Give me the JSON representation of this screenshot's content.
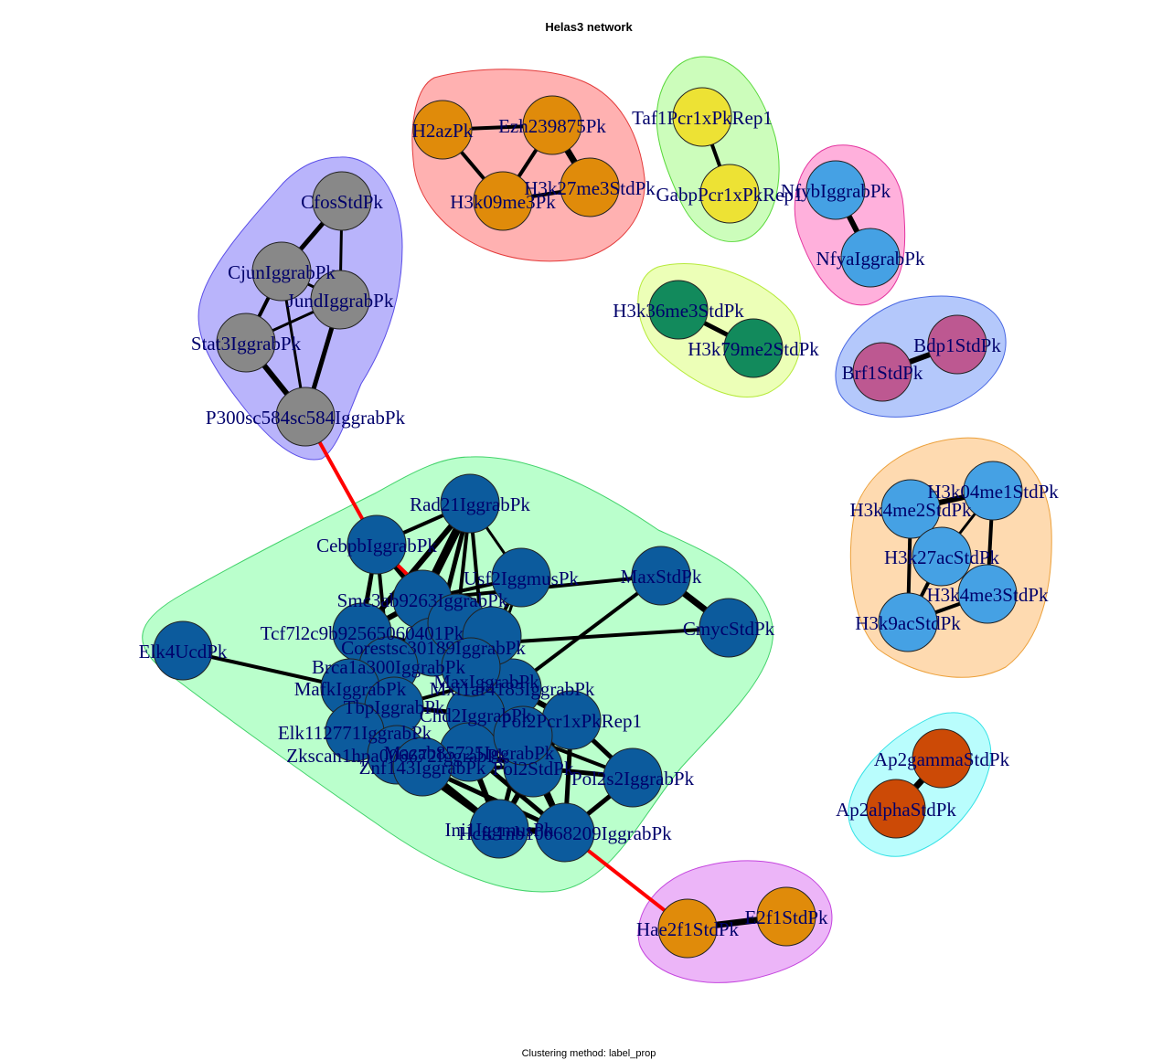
{
  "title": "Helas3 network",
  "caption": "Clustering method: label_prop",
  "colors": {
    "edge": "#000000",
    "bridge_edge": "#ff0000",
    "node_stroke": "#222222",
    "label": "#00006b"
  },
  "clusters": [
    {
      "id": "c-fos",
      "fill": "#b9b4fb",
      "stroke": "#5b4ee8"
    },
    {
      "id": "c-ezh",
      "fill": "#ffb1b1",
      "stroke": "#e33b3b"
    },
    {
      "id": "c-taf",
      "fill": "#ccfdbb",
      "stroke": "#58d83a"
    },
    {
      "id": "c-nfy",
      "fill": "#ffb0dc",
      "stroke": "#e4349f"
    },
    {
      "id": "c-h3k36",
      "fill": "#ecffb7",
      "stroke": "#b6ea3a"
    },
    {
      "id": "c-bdp",
      "fill": "#b4c8fb",
      "stroke": "#4766e2"
    },
    {
      "id": "c-main",
      "fill": "#baffcc",
      "stroke": "#43d36b"
    },
    {
      "id": "c-h3k4",
      "fill": "#fedab0",
      "stroke": "#eca03a"
    },
    {
      "id": "c-ap2",
      "fill": "#b9fdfd",
      "stroke": "#35e2e6"
    },
    {
      "id": "c-e2f1",
      "fill": "#ecb5f8",
      "stroke": "#c445de"
    }
  ],
  "nodes": [
    {
      "id": "CfosStdPk",
      "label": "CfosStdPk",
      "color": "#888888"
    },
    {
      "id": "CjunIggrabPk",
      "label": "CjunIggrabPk",
      "color": "#888888"
    },
    {
      "id": "JundIggrabPk",
      "label": "JundIggrabPk",
      "color": "#888888"
    },
    {
      "id": "Stat3IggrabPk",
      "label": "Stat3IggrabPk",
      "color": "#888888"
    },
    {
      "id": "P300",
      "label": "P300sc584sc584IggrabPk",
      "color": "#888888"
    },
    {
      "id": "H2azPk",
      "label": "H2azPk",
      "color": "#e08b0a"
    },
    {
      "id": "Ezh239875Pk",
      "label": "Ezh239875Pk",
      "color": "#e08b0a"
    },
    {
      "id": "H3k09me3Pk",
      "label": "H3k09me3Pk",
      "color": "#e08b0a"
    },
    {
      "id": "H3k27me3StdPk",
      "label": "H3k27me3StdPk",
      "color": "#e08b0a"
    },
    {
      "id": "Taf1Pcr1xPkRep1",
      "label": "Taf1Pcr1xPkRep1",
      "color": "#ede234"
    },
    {
      "id": "GabpPcr1xPkRep1",
      "label": "GabpPcr1xPkRep1",
      "color": "#ede234"
    },
    {
      "id": "NfybIggrabPk",
      "label": "NfybIggrabPk",
      "color": "#45a1e4"
    },
    {
      "id": "NfyaIggrabPk",
      "label": "NfyaIggrabPk",
      "color": "#45a1e4"
    },
    {
      "id": "H3k36me3StdPk",
      "label": "H3k36me3StdPk",
      "color": "#128a5c"
    },
    {
      "id": "H3k79me2StdPk",
      "label": "H3k79me2StdPk",
      "color": "#128a5c"
    },
    {
      "id": "Bdp1StdPk",
      "label": "Bdp1StdPk",
      "color": "#bd5891"
    },
    {
      "id": "Brf1StdPk",
      "label": "Brf1StdPk",
      "color": "#bd5891"
    },
    {
      "id": "H3k04me1StdPk",
      "label": "H3k04me1StdPk",
      "color": "#45a1e4"
    },
    {
      "id": "H3k4me2StdPk",
      "label": "H3k4me2StdPk",
      "color": "#45a1e4"
    },
    {
      "id": "H3k27acStdPk",
      "label": "H3k27acStdPk",
      "color": "#45a1e4"
    },
    {
      "id": "H3k4me3StdPk",
      "label": "H3k4me3StdPk",
      "color": "#45a1e4"
    },
    {
      "id": "H3k9acStdPk",
      "label": "H3k9acStdPk",
      "color": "#45a1e4"
    },
    {
      "id": "Ap2gammaStdPk",
      "label": "Ap2gammaStdPk",
      "color": "#cc4a06"
    },
    {
      "id": "Ap2alphaStdPk",
      "label": "Ap2alphaStdPk",
      "color": "#cc4a06"
    },
    {
      "id": "Hae2f1StdPk",
      "label": "Hae2f1StdPk",
      "color": "#e08b0a"
    },
    {
      "id": "E2f1StdPk",
      "label": "E2f1StdPk",
      "color": "#e08b0a"
    },
    {
      "id": "Rad21IggrabPk",
      "label": "Rad21IggrabPk",
      "color": "#0c5b9d"
    },
    {
      "id": "CebpbIggrabPk",
      "label": "CebpbIggrabPk",
      "color": "#0c5b9d"
    },
    {
      "id": "Usf2IggmusPk",
      "label": "Usf2IggmusPk",
      "color": "#0c5b9d"
    },
    {
      "id": "MaxStdPk",
      "label": "MaxStdPk",
      "color": "#0c5b9d"
    },
    {
      "id": "CmycStdPk",
      "label": "CmycStdPk",
      "color": "#0c5b9d"
    },
    {
      "id": "Smc3ab9263IggrabPk",
      "label": "Smc3ab9263IggrabPk",
      "color": "#0c5b9d"
    },
    {
      "id": "Tcf7l2c9b92565060401Pk",
      "label": "Tcf7l2c9b92565060401Pk",
      "color": "#0c5b9d"
    },
    {
      "id": "Corestsc30189IggrabPk",
      "label": "Corestsc30189IggrabPk",
      "color": "#0c5b9d"
    },
    {
      "id": "Elk4UcdPk",
      "label": "Elk4UcdPk",
      "color": "#0c5b9d"
    },
    {
      "id": "Brca1a300IggrabPk",
      "label": "Brca1a300IggrabPk",
      "color": "#0c5b9d"
    },
    {
      "id": "MafkIggrabPk",
      "label": "MafkIggrabPk",
      "color": "#0c5b9d"
    },
    {
      "id": "MaxIggrabPk",
      "label": "MaxIggrabPk",
      "color": "#0c5b9d"
    },
    {
      "id": "Mxi1af4185IggrabPk",
      "label": "Mxi1af4185IggrabPk",
      "color": "#0c5b9d"
    },
    {
      "id": "TbpIggrabPk",
      "label": "TbpIggrabPk",
      "color": "#0c5b9d"
    },
    {
      "id": "Chd2IggrabPk",
      "label": "Chd2IggrabPk",
      "color": "#0c5b9d"
    },
    {
      "id": "Elk112771IggrabPk",
      "label": "Elk112771IggrabPk",
      "color": "#0c5b9d"
    },
    {
      "id": "Pol2Pcr1xPkRep1",
      "label": "Pol2Pcr1xPkRep1",
      "color": "#0c5b9d"
    },
    {
      "id": "Zkscan1hpa006672IggrabPk",
      "label": "Zkscan1hpa006672IggrabPk",
      "color": "#0c5b9d"
    },
    {
      "id": "Mazab85725IggrabPk",
      "label": "Mazab85725IggrabPk",
      "color": "#0c5b9d"
    },
    {
      "id": "Znf143IggrabPk",
      "label": "Znf143IggrabPk",
      "color": "#0c5b9d"
    },
    {
      "id": "Pol2StdPk",
      "label": "Pol2StdPk",
      "color": "#0c5b9d"
    },
    {
      "id": "Pol2s2IggrabPk",
      "label": "Pol2s2IggrabPk",
      "color": "#0c5b9d"
    },
    {
      "id": "Ini1IggmusPk",
      "label": "Ini1IggmusPk",
      "color": "#0c5b9d"
    },
    {
      "id": "Hcfc1nb10068209IggrabPk",
      "label": "Hcfc1nb10068209IggrabPk",
      "color": "#0c5b9d"
    },
    {
      "id": "Extra1",
      "label": "",
      "color": "#0c5b9d"
    },
    {
      "id": "Extra2",
      "label": "",
      "color": "#0c5b9d"
    },
    {
      "id": "Extra3",
      "label": "",
      "color": "#0c5b9d"
    },
    {
      "id": "Extra4",
      "label": "",
      "color": "#0c5b9d"
    }
  ],
  "edges": [
    {
      "s": "CfosStdPk",
      "t": "CjunIggrabPk",
      "w": 5
    },
    {
      "s": "CfosStdPk",
      "t": "JundIggrabPk",
      "w": 3
    },
    {
      "s": "CjunIggrabPk",
      "t": "JundIggrabPk",
      "w": 3
    },
    {
      "s": "CjunIggrabPk",
      "t": "Stat3IggrabPk",
      "w": 4
    },
    {
      "s": "CjunIggrabPk",
      "t": "P300",
      "w": 3
    },
    {
      "s": "JundIggrabPk",
      "t": "Stat3IggrabPk",
      "w": 3
    },
    {
      "s": "JundIggrabPk",
      "t": "P300",
      "w": 5
    },
    {
      "s": "Stat3IggrabPk",
      "t": "P300",
      "w": 6
    },
    {
      "s": "P300",
      "t": "CebpbIggrabPk",
      "w": 4,
      "bridge": true
    },
    {
      "s": "H2azPk",
      "t": "Ezh239875Pk",
      "w": 4
    },
    {
      "s": "H2azPk",
      "t": "H3k09me3Pk",
      "w": 4
    },
    {
      "s": "Ezh239875Pk",
      "t": "H3k09me3Pk",
      "w": 4
    },
    {
      "s": "Ezh239875Pk",
      "t": "H3k27me3StdPk",
      "w": 7
    },
    {
      "s": "H3k09me3Pk",
      "t": "H3k27me3StdPk",
      "w": 4
    },
    {
      "s": "Taf1Pcr1xPkRep1",
      "t": "GabpPcr1xPkRep1",
      "w": 4
    },
    {
      "s": "NfybIggrabPk",
      "t": "NfyaIggrabPk",
      "w": 6
    },
    {
      "s": "H3k36me3StdPk",
      "t": "H3k79me2StdPk",
      "w": 5
    },
    {
      "s": "Bdp1StdPk",
      "t": "Brf1StdPk",
      "w": 6
    },
    {
      "s": "H3k04me1StdPk",
      "t": "H3k4me2StdPk",
      "w": 6
    },
    {
      "s": "H3k04me1StdPk",
      "t": "H3k27acStdPk",
      "w": 3
    },
    {
      "s": "H3k04me1StdPk",
      "t": "H3k4me3StdPk",
      "w": 4
    },
    {
      "s": "H3k4me2StdPk",
      "t": "H3k27acStdPk",
      "w": 4
    },
    {
      "s": "H3k4me2StdPk",
      "t": "H3k9acStdPk",
      "w": 4
    },
    {
      "s": "H3k27acStdPk",
      "t": "H3k4me3StdPk",
      "w": 5
    },
    {
      "s": "H3k27acStdPk",
      "t": "H3k9acStdPk",
      "w": 4
    },
    {
      "s": "H3k4me3StdPk",
      "t": "H3k9acStdPk",
      "w": 4
    },
    {
      "s": "Ap2gammaStdPk",
      "t": "Ap2alphaStdPk",
      "w": 7
    },
    {
      "s": "Hae2f1StdPk",
      "t": "E2f1StdPk",
      "w": 7
    },
    {
      "s": "Hcfc1nb10068209IggrabPk",
      "t": "Hae2f1StdPk",
      "w": 4,
      "bridge": true
    },
    {
      "s": "Elk4UcdPk",
      "t": "MafkIggrabPk",
      "w": 4
    },
    {
      "s": "MaxStdPk",
      "t": "CmycStdPk",
      "w": 7
    },
    {
      "s": "MaxStdPk",
      "t": "Smc3ab9263IggrabPk",
      "w": 4
    },
    {
      "s": "MaxStdPk",
      "t": "Mxi1af4185IggrabPk",
      "w": 4
    },
    {
      "s": "CmycStdPk",
      "t": "Corestsc30189IggrabPk",
      "w": 4
    },
    {
      "s": "Rad21IggrabPk",
      "t": "CebpbIggrabPk",
      "w": 4
    },
    {
      "s": "Rad21IggrabPk",
      "t": "Smc3ab9263IggrabPk",
      "w": 9
    },
    {
      "s": "Rad21IggrabPk",
      "t": "Tcf7l2c9b92565060401Pk",
      "w": 6
    },
    {
      "s": "Rad21IggrabPk",
      "t": "Corestsc30189IggrabPk",
      "w": 5
    },
    {
      "s": "Rad21IggrabPk",
      "t": "Extra1",
      "w": 4
    },
    {
      "s": "Rad21IggrabPk",
      "t": "MaxIggrabPk",
      "w": 4
    },
    {
      "s": "Rad21IggrabPk",
      "t": "Usf2IggmusPk",
      "w": 3
    },
    {
      "s": "CebpbIggrabPk",
      "t": "Smc3ab9263IggrabPk",
      "w": 5
    },
    {
      "s": "CebpbIggrabPk",
      "t": "Tcf7l2c9b92565060401Pk",
      "w": 4
    },
    {
      "s": "CebpbIggrabPk",
      "t": "MafkIggrabPk",
      "w": 4
    },
    {
      "s": "CebpbIggrabPk",
      "t": "Brca1a300IggrabPk",
      "w": 4
    },
    {
      "s": "CebpbIggrabPk",
      "t": "Extra1",
      "w": 4,
      "bridge": true
    },
    {
      "s": "Usf2IggmusPk",
      "t": "Smc3ab9263IggrabPk",
      "w": 4
    },
    {
      "s": "Usf2IggmusPk",
      "t": "Extra2",
      "w": 4
    },
    {
      "s": "Usf2IggmusPk",
      "t": "MaxIggrabPk",
      "w": 3
    },
    {
      "s": "Smc3ab9263IggrabPk",
      "t": "Tcf7l2c9b92565060401Pk",
      "w": 6
    },
    {
      "s": "Smc3ab9263IggrabPk",
      "t": "Corestsc30189IggrabPk",
      "w": 5
    },
    {
      "s": "Smc3ab9263IggrabPk",
      "t": "Extra1",
      "w": 6
    },
    {
      "s": "Smc3ab9263IggrabPk",
      "t": "Extra2",
      "w": 4
    },
    {
      "s": "Tcf7l2c9b92565060401Pk",
      "t": "Corestsc30189IggrabPk",
      "w": 6
    },
    {
      "s": "Tcf7l2c9b92565060401Pk",
      "t": "MafkIggrabPk",
      "w": 5
    },
    {
      "s": "Tcf7l2c9b92565060401Pk",
      "t": "Brca1a300IggrabPk",
      "w": 5
    },
    {
      "s": "Corestsc30189IggrabPk",
      "t": "Brca1a300IggrabPk",
      "w": 5
    },
    {
      "s": "Corestsc30189IggrabPk",
      "t": "MaxIggrabPk",
      "w": 5
    },
    {
      "s": "Corestsc30189IggrabPk",
      "t": "Extra3",
      "w": 4
    },
    {
      "s": "Brca1a300IggrabPk",
      "t": "MafkIggrabPk",
      "w": 6
    },
    {
      "s": "Brca1a300IggrabPk",
      "t": "TbpIggrabPk",
      "w": 5
    },
    {
      "s": "MafkIggrabPk",
      "t": "Elk112771IggrabPk",
      "w": 6
    },
    {
      "s": "MafkIggrabPk",
      "t": "TbpIggrabPk",
      "w": 5
    },
    {
      "s": "MafkIggrabPk",
      "t": "Zkscan1hpa006672IggrabPk",
      "w": 5
    },
    {
      "s": "MaxIggrabPk",
      "t": "Mxi1af4185IggrabPk",
      "w": 6
    },
    {
      "s": "MaxIggrabPk",
      "t": "Chd2IggrabPk",
      "w": 5
    },
    {
      "s": "MaxIggrabPk",
      "t": "TbpIggrabPk",
      "w": 4
    },
    {
      "s": "Mxi1af4185IggrabPk",
      "t": "Pol2Pcr1xPkRep1",
      "w": 6
    },
    {
      "s": "Mxi1af4185IggrabPk",
      "t": "Chd2IggrabPk",
      "w": 5
    },
    {
      "s": "Mxi1af4185IggrabPk",
      "t": "Pol2StdPk",
      "w": 5
    },
    {
      "s": "Mxi1af4185IggrabPk",
      "t": "Mazab85725IggrabPk",
      "w": 5
    },
    {
      "s": "TbpIggrabPk",
      "t": "Chd2IggrabPk",
      "w": 5
    },
    {
      "s": "TbpIggrabPk",
      "t": "Elk112771IggrabPk",
      "w": 5
    },
    {
      "s": "TbpIggrabPk",
      "t": "Znf143IggrabPk",
      "w": 5
    },
    {
      "s": "Chd2IggrabPk",
      "t": "Pol2Pcr1xPkRep1",
      "w": 6
    },
    {
      "s": "Chd2IggrabPk",
      "t": "Mazab85725IggrabPk",
      "w": 6
    },
    {
      "s": "Chd2IggrabPk",
      "t": "Pol2StdPk",
      "w": 6
    },
    {
      "s": "Chd2IggrabPk",
      "t": "Extra4",
      "w": 5
    },
    {
      "s": "Elk112771IggrabPk",
      "t": "Zkscan1hpa006672IggrabPk",
      "w": 6
    },
    {
      "s": "Elk112771IggrabPk",
      "t": "Znf143IggrabPk",
      "w": 5
    },
    {
      "s": "Pol2Pcr1xPkRep1",
      "t": "Pol2StdPk",
      "w": 6
    },
    {
      "s": "Pol2Pcr1xPkRep1",
      "t": "Pol2s2IggrabPk",
      "w": 5
    },
    {
      "s": "Pol2Pcr1xPkRep1",
      "t": "Extra4",
      "w": 6
    },
    {
      "s": "Pol2Pcr1xPkRep1",
      "t": "Hcfc1nb10068209IggrabPk",
      "w": 5
    },
    {
      "s": "Zkscan1hpa006672IggrabPk",
      "t": "Znf143IggrabPk",
      "w": 6
    },
    {
      "s": "Zkscan1hpa006672IggrabPk",
      "t": "Ini1IggmusPk",
      "w": 5
    },
    {
      "s": "Mazab85725IggrabPk",
      "t": "Znf143IggrabPk",
      "w": 5
    },
    {
      "s": "Mazab85725IggrabPk",
      "t": "Pol2StdPk",
      "w": 6
    },
    {
      "s": "Mazab85725IggrabPk",
      "t": "Extra4",
      "w": 6
    },
    {
      "s": "Mazab85725IggrabPk",
      "t": "Ini1IggmusPk",
      "w": 6
    },
    {
      "s": "Mazab85725IggrabPk",
      "t": "Hcfc1nb10068209IggrabPk",
      "w": 5
    },
    {
      "s": "Znf143IggrabPk",
      "t": "Ini1IggmusPk",
      "w": 6
    },
    {
      "s": "Znf143IggrabPk",
      "t": "Hcfc1nb10068209IggrabPk",
      "w": 5
    },
    {
      "s": "Znf143IggrabPk",
      "t": "Pol2StdPk",
      "w": 4
    },
    {
      "s": "Pol2StdPk",
      "t": "Pol2s2IggrabPk",
      "w": 5
    },
    {
      "s": "Pol2StdPk",
      "t": "Ini1IggmusPk",
      "w": 6
    },
    {
      "s": "Pol2StdPk",
      "t": "Hcfc1nb10068209IggrabPk",
      "w": 6
    },
    {
      "s": "Pol2StdPk",
      "t": "Extra4",
      "w": 6
    },
    {
      "s": "Pol2s2IggrabPk",
      "t": "Hcfc1nb10068209IggrabPk",
      "w": 5
    },
    {
      "s": "Pol2s2IggrabPk",
      "t": "Extra4",
      "w": 4
    },
    {
      "s": "Ini1IggmusPk",
      "t": "Hcfc1nb10068209IggrabPk",
      "w": 7
    },
    {
      "s": "Ini1IggmusPk",
      "t": "Extra4",
      "w": 5
    },
    {
      "s": "Hcfc1nb10068209IggrabPk",
      "t": "Extra4",
      "w": 5
    },
    {
      "s": "Extra1",
      "t": "Extra2",
      "w": 5
    },
    {
      "s": "Extra1",
      "t": "Extra3",
      "w": 5
    },
    {
      "s": "Extra2",
      "t": "MaxIggrabPk",
      "w": 5
    },
    {
      "s": "Extra3",
      "t": "Mxi1af4185IggrabPk",
      "w": 5
    },
    {
      "s": "Extra3",
      "t": "Chd2IggrabPk",
      "w": 5
    }
  ]
}
